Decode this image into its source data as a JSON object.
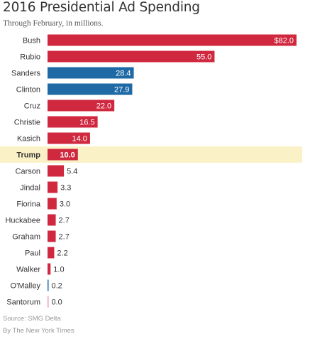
{
  "header": {
    "title": "2016 Presidential Ad Spending",
    "subtitle": "Through February, in millions."
  },
  "footer": {
    "source": "Source: SMG Delta",
    "byline": "By The New York Times"
  },
  "colors": {
    "republican": "#d0283f",
    "democrat": "#1f6aa5",
    "highlight": "#fbf1c7",
    "label_inside": "#ffffff",
    "label_outside": "#333333"
  },
  "chart_data": {
    "type": "bar",
    "orientation": "horizontal",
    "title": "2016 Presidential Ad Spending",
    "subtitle": "Through February, in millions.",
    "categories": [
      "Bush",
      "Rubio",
      "Sanders",
      "Clinton",
      "Cruz",
      "Christie",
      "Kasich",
      "Trump",
      "Carson",
      "Jindal",
      "Fiorina",
      "Huckabee",
      "Graham",
      "Paul",
      "Walker",
      "O'Malley",
      "Santorum"
    ],
    "values": [
      82.0,
      55.0,
      28.4,
      27.9,
      22.0,
      16.5,
      14.0,
      10.0,
      5.4,
      3.3,
      3.0,
      2.7,
      2.7,
      2.2,
      1.0,
      0.2,
      0.0
    ],
    "value_labels": [
      "$82.0",
      "55.0",
      "28.4",
      "27.9",
      "22.0",
      "16.5",
      "14.0",
      "10.0",
      "5.4",
      "3.3",
      "3.0",
      "2.7",
      "2.7",
      "2.2",
      "1.0",
      "0.2",
      "0.0"
    ],
    "party": [
      "R",
      "R",
      "D",
      "D",
      "R",
      "R",
      "R",
      "R",
      "R",
      "R",
      "R",
      "R",
      "R",
      "R",
      "R",
      "D",
      "R"
    ],
    "highlighted": "Trump",
    "xlim": [
      0,
      82.0
    ],
    "grid": false,
    "legend": "none"
  }
}
